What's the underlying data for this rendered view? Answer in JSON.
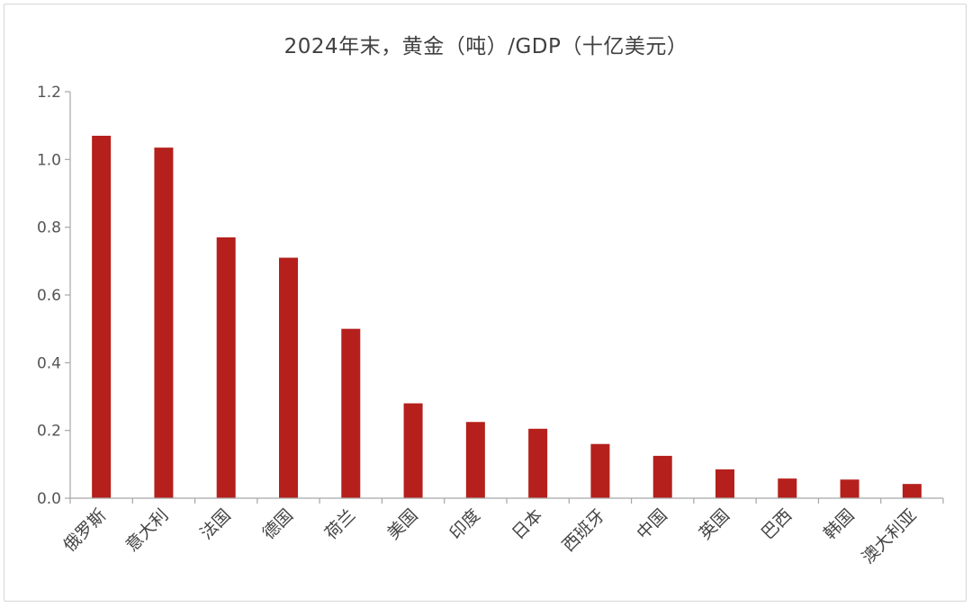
{
  "chart_data": {
    "type": "bar",
    "title": "2024年末，黄金（吨）/GDP（十亿美元）",
    "categories": [
      "俄罗斯",
      "意大利",
      "法国",
      "德国",
      "荷兰",
      "美国",
      "印度",
      "日本",
      "西班牙",
      "中国",
      "英国",
      "巴西",
      "韩国",
      "澳大利亚"
    ],
    "values": [
      1.07,
      1.035,
      0.77,
      0.71,
      0.5,
      0.28,
      0.225,
      0.205,
      0.16,
      0.125,
      0.085,
      0.058,
      0.055,
      0.042
    ],
    "yticks": [
      "0.0",
      "0.2",
      "0.4",
      "0.6",
      "0.8",
      "1.0",
      "1.2"
    ],
    "ylim": [
      0,
      1.2
    ],
    "xlabel": "",
    "ylabel": "",
    "bar_color": "#b5201c",
    "axis_color": "#a6a6a6",
    "grid": false,
    "legend": "none"
  }
}
